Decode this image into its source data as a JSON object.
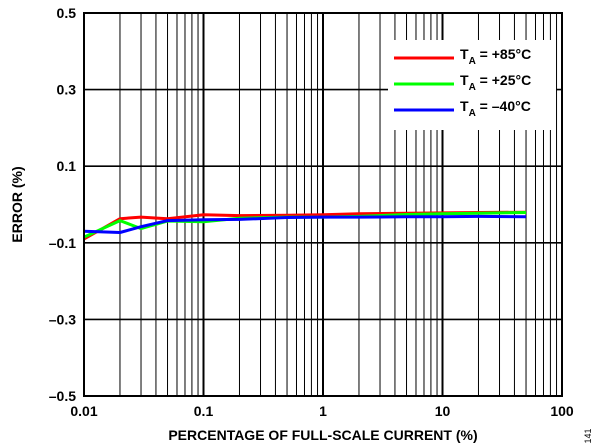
{
  "chart_data": {
    "type": "line",
    "xlabel": "PERCENTAGE OF FULL-SCALE CURRENT (%)",
    "ylabel": "ERROR (%)",
    "xscale": "log",
    "xlim": [
      0.01,
      100
    ],
    "ylim": [
      -0.5,
      0.5
    ],
    "x_ticks": [
      "0.01",
      "0.1",
      "1",
      "10",
      "100"
    ],
    "y_ticks": [
      "0.5",
      "0.3",
      "0.1",
      "–0.1",
      "–0.3",
      "–0.5"
    ],
    "y_tick_values": [
      0.5,
      0.3,
      0.1,
      -0.1,
      -0.3,
      -0.5
    ],
    "grid": true,
    "legend_position": "top-right",
    "figure_id": "141",
    "series": [
      {
        "name": "T_A = +85°C",
        "label_main": "T",
        "label_sub": "A",
        "label_rest": " = +85°C",
        "color": "#ff0000",
        "x": [
          0.01,
          0.02,
          0.03,
          0.05,
          0.1,
          0.2,
          0.5,
          1,
          2,
          5,
          10,
          20,
          50
        ],
        "y": [
          -0.09,
          -0.037,
          -0.033,
          -0.037,
          -0.027,
          -0.029,
          -0.028,
          -0.027,
          -0.024,
          -0.023,
          -0.022,
          -0.021,
          -0.02
        ]
      },
      {
        "name": "T_A = +25°C",
        "label_main": "T",
        "label_sub": "A",
        "label_rest": " = +25°C",
        "color": "#00ff00",
        "x": [
          0.01,
          0.02,
          0.03,
          0.05,
          0.1,
          0.2,
          0.5,
          1,
          2,
          5,
          10,
          20,
          50
        ],
        "y": [
          -0.085,
          -0.042,
          -0.063,
          -0.043,
          -0.045,
          -0.036,
          -0.033,
          -0.033,
          -0.031,
          -0.026,
          -0.024,
          -0.023,
          -0.021
        ]
      },
      {
        "name": "T_A = –40°C",
        "label_main": "T",
        "label_sub": "A",
        "label_rest": " = –40°C",
        "color": "#0000ff",
        "x": [
          0.01,
          0.02,
          0.03,
          0.05,
          0.1,
          0.2,
          0.5,
          1,
          2,
          5,
          10,
          20,
          50
        ],
        "y": [
          -0.07,
          -0.073,
          -0.058,
          -0.042,
          -0.04,
          -0.039,
          -0.034,
          -0.033,
          -0.033,
          -0.032,
          -0.032,
          -0.031,
          -0.032
        ]
      }
    ]
  }
}
